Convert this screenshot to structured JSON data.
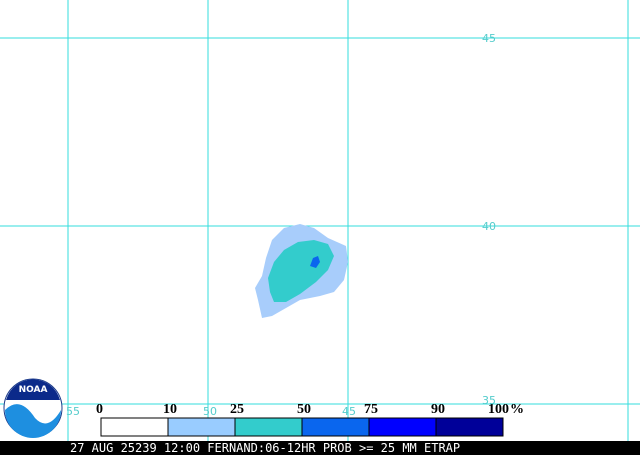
{
  "grid_labels": {
    "latitudes": [
      "45",
      "40",
      "35"
    ],
    "longitudes": [
      "55",
      "50",
      "45"
    ]
  },
  "logo": {
    "text": "NOAA"
  },
  "legend": {
    "labels": [
      "0",
      "10",
      "25",
      "50",
      "75",
      "90",
      "100"
    ],
    "unit": "%",
    "colors": [
      "#ffffff",
      "#99ccff",
      "#33cccc",
      "#0a66ee",
      "#0000ff",
      "#000099"
    ]
  },
  "caption": "27 AUG 25239 12:00 FERNAND:06-12HR PROB >= 25 MM ETRAP"
}
